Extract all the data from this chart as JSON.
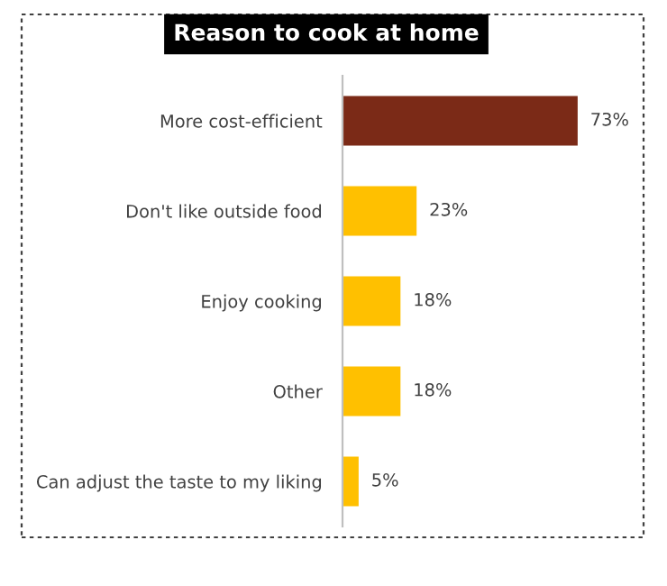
{
  "chart_data": {
    "type": "bar",
    "orientation": "horizontal",
    "title": "Reason to cook at home",
    "categories": [
      "More cost-efficient",
      "Don't like outside food",
      "Enjoy cooking",
      "Other",
      "Can adjust the taste to my liking"
    ],
    "values": [
      73,
      23,
      18,
      18,
      5
    ],
    "colors": [
      "#7b2a17",
      "#ffc000",
      "#ffc000",
      "#ffc000",
      "#ffc000"
    ],
    "value_labels": [
      "73%",
      "23%",
      "18%",
      "18%",
      "5%"
    ],
    "grid": false,
    "legend": false
  }
}
